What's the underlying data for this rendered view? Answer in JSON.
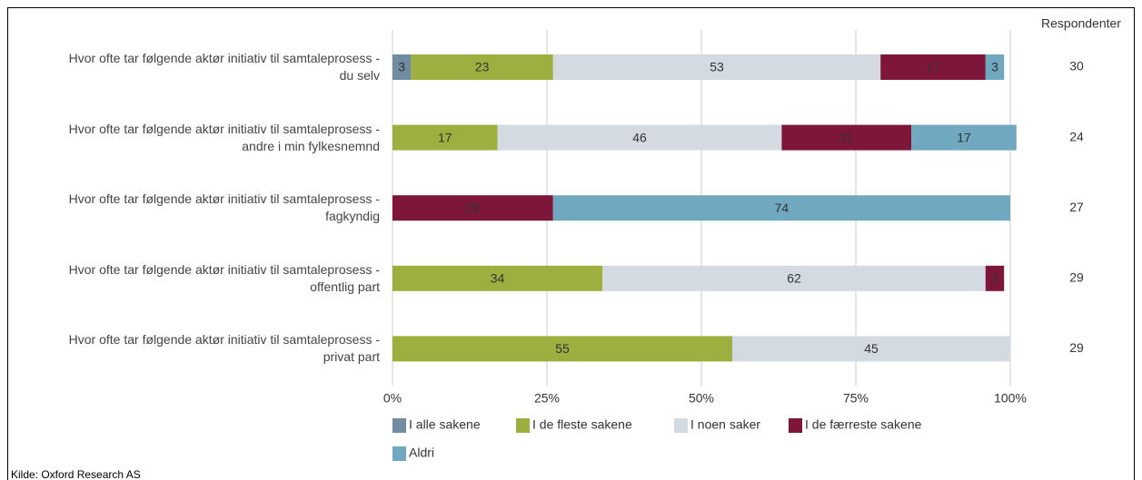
{
  "chart_data": {
    "type": "stacked-bar-horizontal",
    "categories": [
      "Hvor ofte tar følgende aktør initiativ til samtaleprosess - du selv",
      "Hvor ofte tar følgende aktør initiativ til samtaleprosess - andre i min fylkesnemnd",
      "Hvor ofte tar følgende aktør initiativ til samtaleprosess - fagkyndig",
      "Hvor ofte tar følgende aktør initiativ til samtaleprosess - offentlig part",
      "Hvor ofte tar følgende aktør initiativ til samtaleprosess - privat part"
    ],
    "series": [
      {
        "name": "I alle sakene",
        "color": "#6f8ca0",
        "values": [
          3,
          null,
          null,
          null,
          null
        ]
      },
      {
        "name": "I de fleste sakene",
        "color": "#9caf3f",
        "values": [
          23,
          17,
          null,
          34,
          55
        ]
      },
      {
        "name": "I noen saker",
        "color": "#d3dae2",
        "values": [
          53,
          46,
          null,
          62,
          45
        ]
      },
      {
        "name": "I de færreste sakene",
        "color": "#7d1638",
        "values": [
          17,
          21,
          26,
          3,
          null
        ]
      },
      {
        "name": "Aldri",
        "color": "#6fa8bf",
        "values": [
          3,
          17,
          74,
          null,
          null
        ]
      }
    ],
    "xlim": [
      0,
      100
    ],
    "xticks": [
      {
        "value": 0,
        "label": "0%"
      },
      {
        "value": 25,
        "label": "25%"
      },
      {
        "value": 50,
        "label": "50%"
      },
      {
        "value": 75,
        "label": "75%"
      },
      {
        "value": 100,
        "label": "100%"
      }
    ],
    "grid": true,
    "respondents_label": "Respondenter",
    "respondents": [
      30,
      24,
      27,
      29,
      29
    ],
    "source": "Kilde: Oxford Research AS"
  }
}
